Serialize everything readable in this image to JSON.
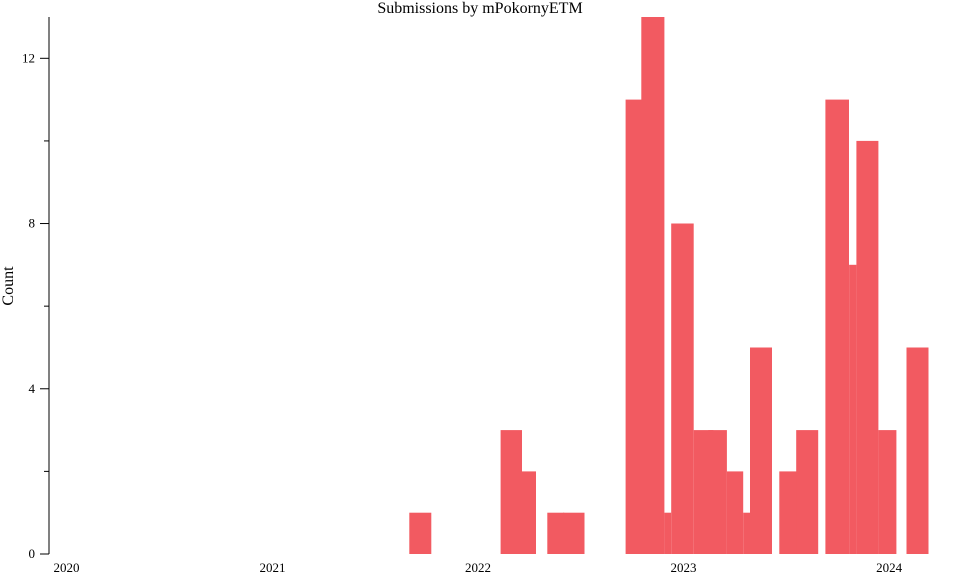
{
  "chart_data": {
    "type": "bar",
    "title": "Submissions by mPokornyETM",
    "ylabel": "Count",
    "xlabel": "",
    "color": "#f25a61",
    "ylim": [
      0,
      13
    ],
    "xlim": [
      "2019-12-01",
      "2024-05-06"
    ],
    "yticks_major": [
      0,
      4,
      8,
      12
    ],
    "yticks_minor": [
      2,
      6,
      10
    ],
    "xticks": [
      {
        "date": "2020-01-01",
        "label": "2020"
      },
      {
        "date": "2021-01-01",
        "label": "2021"
      },
      {
        "date": "2022-01-01",
        "label": "2022"
      },
      {
        "date": "2023-01-01",
        "label": "2023"
      },
      {
        "date": "2024-01-01",
        "label": "2024"
      }
    ],
    "bars": [
      {
        "start": "2021-09-01",
        "end": "2021-10-10",
        "value": 1
      },
      {
        "start": "2022-02-10",
        "end": "2022-03-20",
        "value": 3
      },
      {
        "start": "2022-03-18",
        "end": "2022-04-14",
        "value": 2
      },
      {
        "start": "2022-05-04",
        "end": "2022-06-03",
        "value": 1
      },
      {
        "start": "2022-06-01",
        "end": "2022-07-09",
        "value": 1
      },
      {
        "start": "2022-09-20",
        "end": "2022-10-22",
        "value": 11
      },
      {
        "start": "2022-10-18",
        "end": "2022-11-28",
        "value": 13
      },
      {
        "start": "2022-11-28",
        "end": "2022-12-10",
        "value": 1
      },
      {
        "start": "2022-12-10",
        "end": "2023-01-19",
        "value": 8
      },
      {
        "start": "2023-01-19",
        "end": "2023-02-23",
        "value": 3
      },
      {
        "start": "2023-02-14",
        "end": "2023-03-19",
        "value": 3
      },
      {
        "start": "2023-03-19",
        "end": "2023-04-17",
        "value": 2
      },
      {
        "start": "2023-04-17",
        "end": "2023-05-01",
        "value": 1
      },
      {
        "start": "2023-04-29",
        "end": "2023-06-07",
        "value": 5
      },
      {
        "start": "2023-06-20",
        "end": "2023-07-22",
        "value": 2
      },
      {
        "start": "2023-07-20",
        "end": "2023-08-28",
        "value": 3
      },
      {
        "start": "2023-09-10",
        "end": "2023-10-22",
        "value": 11
      },
      {
        "start": "2023-10-22",
        "end": "2023-11-04",
        "value": 7
      },
      {
        "start": "2023-11-04",
        "end": "2023-12-13",
        "value": 10
      },
      {
        "start": "2023-12-13",
        "end": "2024-01-14",
        "value": 3
      },
      {
        "start": "2024-02-01",
        "end": "2024-03-11",
        "value": 5
      }
    ]
  }
}
